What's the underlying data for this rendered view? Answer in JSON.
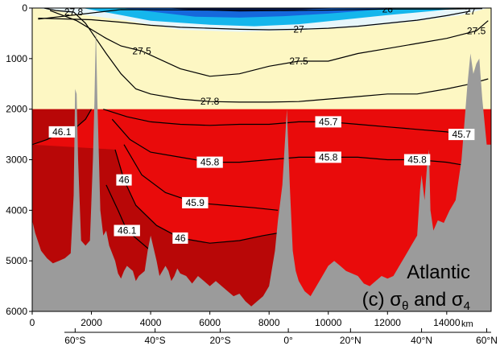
{
  "chart_data": {
    "type": "heatmap",
    "title_line1": "Atlantic",
    "title_line2_prefix": "(c) σ",
    "title_line2_sub1": "θ",
    "title_line2_mid": " and σ",
    "title_line2_sub2": "4",
    "x_unit_label": "km",
    "xlim": [
      0,
      15500
    ],
    "ylim": [
      6000,
      0
    ],
    "grid": false,
    "x_ticks": [
      0,
      2000,
      4000,
      6000,
      8000,
      10000,
      12000,
      14000
    ],
    "x_tick_labels": [
      "0",
      "2000",
      "4000",
      "6000",
      "8000",
      "10000",
      "12000",
      "14000"
    ],
    "y_ticks": [
      0,
      1000,
      2000,
      3000,
      4000,
      5000,
      6000
    ],
    "y_tick_labels": [
      "0",
      "1000",
      "2000",
      "3000",
      "4000",
      "5000",
      "6000"
    ],
    "lat_ticks": [
      {
        "x": 1450,
        "label": "60°S"
      },
      {
        "x": 4150,
        "label": "40°S"
      },
      {
        "x": 6350,
        "label": "20°S"
      },
      {
        "x": 8650,
        "label": "0°"
      },
      {
        "x": 10750,
        "label": "20°N"
      },
      {
        "x": 13150,
        "label": "40°N"
      },
      {
        "x": 15350,
        "label": "60°N"
      }
    ],
    "reference_levels": {
      "sigma4_top_depth": 2000
    },
    "sigma_theta_contours": [
      {
        "label": "26",
        "depths": [
          [
            200,
            220
          ],
          [
            3000,
            30
          ],
          [
            6000,
            40
          ],
          [
            8500,
            50
          ],
          [
            10000,
            40
          ],
          [
            12000,
            20
          ],
          [
            14000,
            20
          ],
          [
            15200,
            10
          ]
        ]
      },
      {
        "label": "27",
        "depths": [
          [
            200,
            200
          ],
          [
            2000,
            230
          ],
          [
            3000,
            280
          ],
          [
            4000,
            340
          ],
          [
            5000,
            380
          ],
          [
            6000,
            400
          ],
          [
            7000,
            420
          ],
          [
            8000,
            430
          ],
          [
            9000,
            420
          ],
          [
            10000,
            400
          ],
          [
            11000,
            360
          ],
          [
            12000,
            300
          ],
          [
            13000,
            240
          ],
          [
            14000,
            150
          ],
          [
            14800,
            60
          ]
        ]
      },
      {
        "label": "27.5",
        "depths": [
          [
            600,
            50
          ],
          [
            1500,
            250
          ],
          [
            2500,
            600
          ],
          [
            3000,
            750
          ],
          [
            3700,
            850
          ],
          [
            5000,
            1200
          ],
          [
            6000,
            1350
          ],
          [
            7000,
            1300
          ],
          [
            8000,
            1150
          ],
          [
            9000,
            1050
          ],
          [
            10000,
            1050
          ],
          [
            11000,
            900
          ],
          [
            12000,
            800
          ],
          [
            13000,
            700
          ],
          [
            14000,
            600
          ],
          [
            15000,
            450
          ],
          [
            15400,
            250
          ]
        ]
      },
      {
        "label": "27.8",
        "depths": [
          [
            400,
            0
          ],
          [
            800,
            50
          ],
          [
            1400,
            80
          ],
          [
            1800,
            300
          ],
          [
            2500,
            900
          ],
          [
            3000,
            1300
          ],
          [
            3500,
            1600
          ],
          [
            4000,
            1700
          ],
          [
            5000,
            1800
          ],
          [
            6000,
            1850
          ],
          [
            7000,
            1860
          ],
          [
            8000,
            1860
          ],
          [
            9000,
            1850
          ],
          [
            10000,
            1800
          ],
          [
            11000,
            1750
          ],
          [
            12000,
            1700
          ],
          [
            13000,
            1700
          ],
          [
            14000,
            1600
          ],
          [
            14800,
            1500
          ],
          [
            15400,
            1400
          ]
        ]
      }
    ],
    "sigma4_contours": [
      {
        "label": "46.1",
        "depths": [
          [
            0,
            2700
          ],
          [
            500,
            2600
          ],
          [
            1000,
            2450
          ],
          [
            1500,
            2350
          ],
          [
            1800,
            2200
          ],
          [
            2000,
            2000
          ]
        ]
      },
      {
        "label": "45.7",
        "depths": [
          [
            2400,
            2000
          ],
          [
            3200,
            2150
          ],
          [
            4000,
            2250
          ],
          [
            5000,
            2300
          ],
          [
            6000,
            2320
          ],
          [
            7000,
            2300
          ],
          [
            8000,
            2300
          ],
          [
            9000,
            2250
          ],
          [
            10000,
            2250
          ],
          [
            11000,
            2300
          ],
          [
            12000,
            2350
          ],
          [
            13000,
            2400
          ],
          [
            14000,
            2450
          ],
          [
            14500,
            2500
          ],
          [
            15000,
            2450
          ]
        ]
      },
      {
        "label": "45.8",
        "depths": [
          [
            2700,
            2200
          ],
          [
            3300,
            2600
          ],
          [
            4000,
            2850
          ],
          [
            5000,
            2950
          ],
          [
            6000,
            3050
          ],
          [
            7000,
            3050
          ],
          [
            8000,
            3000
          ],
          [
            9000,
            2950
          ],
          [
            10000,
            2950
          ],
          [
            11000,
            2950
          ],
          [
            12000,
            3000
          ],
          [
            13000,
            3000
          ],
          [
            14000,
            3050
          ],
          [
            14500,
            3100
          ],
          [
            14900,
            3000
          ]
        ]
      },
      {
        "label": "45.9",
        "depths": [
          [
            3100,
            2700
          ],
          [
            3700,
            3300
          ],
          [
            4500,
            3650
          ],
          [
            5500,
            3850
          ],
          [
            6500,
            3900
          ],
          [
            7500,
            3950
          ],
          [
            8300,
            4000
          ]
        ]
      },
      {
        "label": "46",
        "depths": [
          [
            2800,
            2800
          ],
          [
            3100,
            3400
          ],
          [
            3500,
            3900
          ],
          [
            4200,
            4300
          ],
          [
            5000,
            4550
          ],
          [
            6000,
            4650
          ],
          [
            7000,
            4600
          ],
          [
            7800,
            4500
          ],
          [
            8300,
            4450
          ]
        ]
      },
      {
        "label": "46.1",
        "depths": [
          [
            2500,
            3500
          ],
          [
            2900,
            4000
          ],
          [
            3200,
            4400
          ],
          [
            3600,
            4600
          ],
          [
            4000,
            4800
          ]
        ]
      }
    ],
    "bathymetry_depth": [
      [
        0,
        6000
      ],
      [
        0,
        4200
      ],
      [
        100,
        4450
      ],
      [
        300,
        4800
      ],
      [
        500,
        4950
      ],
      [
        700,
        5050
      ],
      [
        900,
        5000
      ],
      [
        1100,
        4950
      ],
      [
        1300,
        4850
      ],
      [
        1400,
        3700
      ],
      [
        1450,
        1600
      ],
      [
        1500,
        1700
      ],
      [
        1550,
        3000
      ],
      [
        1650,
        4600
      ],
      [
        1800,
        4700
      ],
      [
        1950,
        4600
      ],
      [
        2050,
        3000
      ],
      [
        2100,
        1900
      ],
      [
        2150,
        400
      ],
      [
        2200,
        1800
      ],
      [
        2300,
        4000
      ],
      [
        2400,
        4500
      ],
      [
        2500,
        4400
      ],
      [
        2600,
        4700
      ],
      [
        2800,
        5000
      ],
      [
        2900,
        5250
      ],
      [
        3000,
        5350
      ],
      [
        3100,
        5200
      ],
      [
        3200,
        5100
      ],
      [
        3400,
        5200
      ],
      [
        3500,
        5400
      ],
      [
        3600,
        5300
      ],
      [
        3800,
        5200
      ],
      [
        3900,
        4800
      ],
      [
        4000,
        4500
      ],
      [
        4100,
        4750
      ],
      [
        4200,
        5000
      ],
      [
        4300,
        5300
      ],
      [
        4400,
        5200
      ],
      [
        4500,
        5100
      ],
      [
        4600,
        5200
      ],
      [
        4700,
        5400
      ],
      [
        4800,
        5300
      ],
      [
        4900,
        5150
      ],
      [
        5000,
        5250
      ],
      [
        5200,
        5300
      ],
      [
        5400,
        5450
      ],
      [
        5600,
        5300
      ],
      [
        5800,
        5400
      ],
      [
        6000,
        5500
      ],
      [
        6200,
        5400
      ],
      [
        6400,
        5500
      ],
      [
        6600,
        5600
      ],
      [
        6800,
        5700
      ],
      [
        7000,
        5650
      ],
      [
        7200,
        5800
      ],
      [
        7400,
        5900
      ],
      [
        7600,
        5800
      ],
      [
        7800,
        5700
      ],
      [
        8000,
        5500
      ],
      [
        8200,
        4800
      ],
      [
        8300,
        4200
      ],
      [
        8450,
        3500
      ],
      [
        8600,
        2000
      ],
      [
        8700,
        3500
      ],
      [
        8800,
        4800
      ],
      [
        8900,
        5200
      ],
      [
        9000,
        5400
      ],
      [
        9200,
        5600
      ],
      [
        9400,
        5700
      ],
      [
        9600,
        5500
      ],
      [
        9800,
        5300
      ],
      [
        10000,
        5100
      ],
      [
        10200,
        5000
      ],
      [
        10400,
        5100
      ],
      [
        10600,
        5200
      ],
      [
        10800,
        5250
      ],
      [
        11000,
        5300
      ],
      [
        11200,
        5450
      ],
      [
        11400,
        5500
      ],
      [
        11600,
        5400
      ],
      [
        11800,
        5300
      ],
      [
        12000,
        5350
      ],
      [
        12200,
        5300
      ],
      [
        12400,
        5100
      ],
      [
        12600,
        4900
      ],
      [
        12800,
        4700
      ],
      [
        13000,
        4500
      ],
      [
        13100,
        3600
      ],
      [
        13150,
        3300
      ],
      [
        13250,
        3800
      ],
      [
        13350,
        3000
      ],
      [
        13400,
        2800
      ],
      [
        13450,
        4000
      ],
      [
        13550,
        4400
      ],
      [
        13700,
        4200
      ],
      [
        13900,
        4250
      ],
      [
        14100,
        4000
      ],
      [
        14300,
        3800
      ],
      [
        14500,
        3000
      ],
      [
        14700,
        1500
      ],
      [
        14800,
        900
      ],
      [
        14900,
        1300
      ],
      [
        15000,
        1100
      ],
      [
        15100,
        1000
      ],
      [
        15200,
        1800
      ],
      [
        15350,
        2700
      ],
      [
        15500,
        2700
      ],
      [
        15500,
        6000
      ]
    ],
    "colors": {
      "upper_background": "#fdf7c3",
      "deep_red": "#e90b0b",
      "darker_red": "#b80707",
      "surface_light": "#e7f6fb",
      "surface_cyan": "#15b6ec",
      "surface_blue": "#1568dc",
      "surface_navy": "#071a55",
      "bathymetry": "#9b9b9b",
      "contour_line": "#000000"
    }
  }
}
